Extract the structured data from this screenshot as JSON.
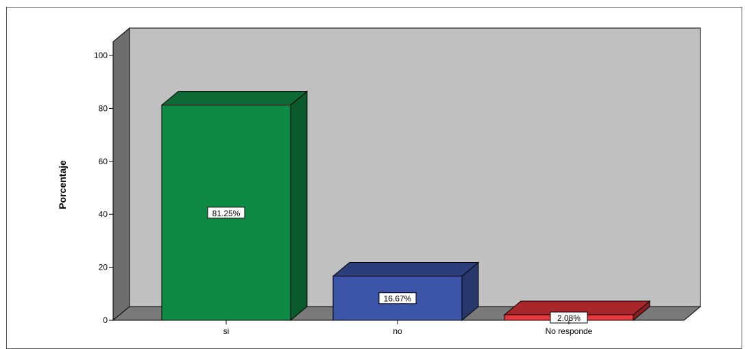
{
  "chart_data": {
    "type": "bar",
    "categories": [
      "si",
      "no",
      "No responde"
    ],
    "values": [
      81.25,
      16.67,
      2.08
    ],
    "data_labels": [
      "81.25%",
      "16.67%",
      "2.08%"
    ],
    "ylabel": "Porcentaje",
    "xlabel": "",
    "ylim": [
      0,
      100
    ],
    "yticks": [
      "0",
      "20",
      "40",
      "60",
      "80",
      "100"
    ],
    "grid": false,
    "style": "3d-bar",
    "colors": {
      "bars": [
        "#0f8a45",
        "#3d55a8",
        "#e8393f"
      ],
      "bar_sides": [
        "#0b5a2d",
        "#27366b",
        "#8a1f22"
      ],
      "bar_tops": [
        "#0d6a35",
        "#2c3d7c",
        "#a9262a"
      ],
      "wall_back": "#c0c0c0",
      "wall_side": "#6e6e6e",
      "floor": "#7a7a7a"
    }
  }
}
